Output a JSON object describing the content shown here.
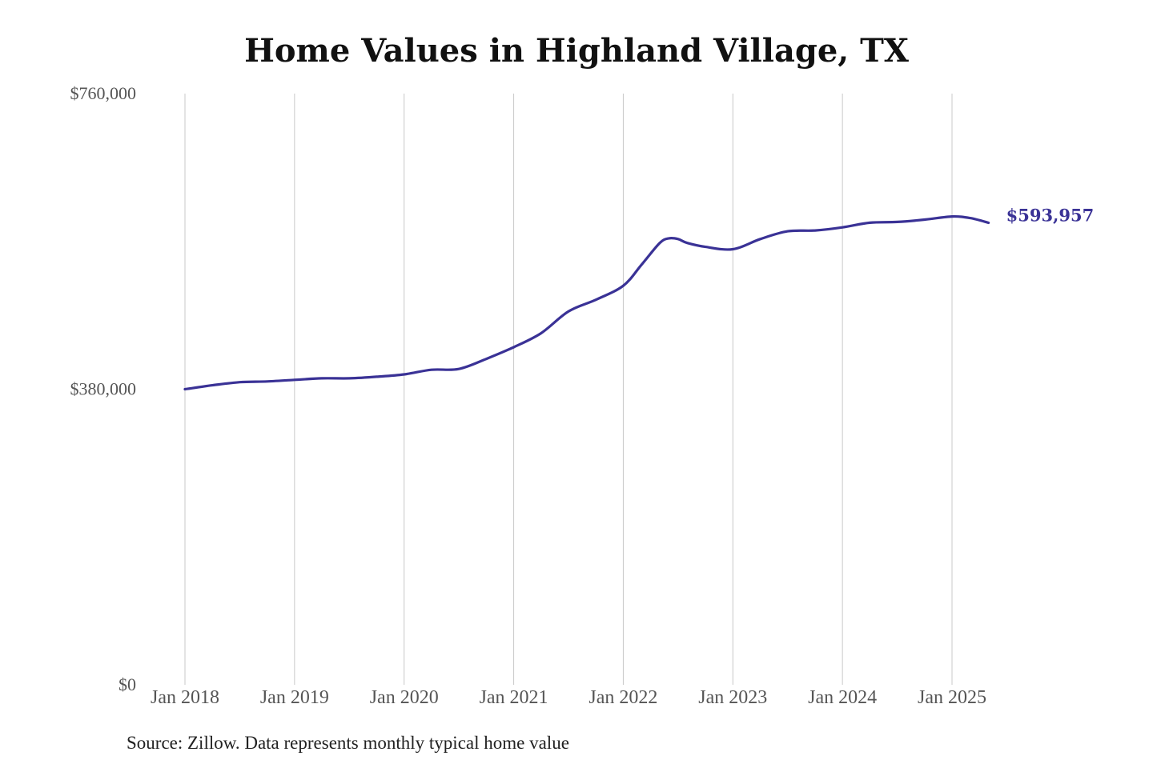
{
  "chart_data": {
    "type": "line",
    "title": "Home Values in Highland Village, TX",
    "source": "Source: Zillow. Data represents monthly typical home value",
    "ylim": [
      0,
      760000
    ],
    "ytick_values": [
      0,
      380000,
      760000
    ],
    "ytick_labels": [
      "$0",
      "$380,000",
      "$760,000"
    ],
    "xtick_labels": [
      "Jan 2018",
      "Jan 2019",
      "Jan 2020",
      "Jan 2021",
      "Jan 2022",
      "Jan 2023",
      "Jan 2024",
      "Jan 2025"
    ],
    "grid": "vertical",
    "series": [
      {
        "color": "#3a3296",
        "end_label": "$593,957",
        "x": [
          "2018-01",
          "2018-04",
          "2018-07",
          "2018-10",
          "2019-01",
          "2019-04",
          "2019-07",
          "2019-10",
          "2020-01",
          "2020-04",
          "2020-07",
          "2020-10",
          "2021-01",
          "2021-04",
          "2021-07",
          "2021-10",
          "2022-01",
          "2022-03",
          "2022-05",
          "2022-06",
          "2022-07",
          "2022-08",
          "2022-10",
          "2023-01",
          "2023-04",
          "2023-07",
          "2023-10",
          "2024-01",
          "2024-04",
          "2024-07",
          "2024-10",
          "2025-01",
          "2025-03",
          "2025-05"
        ],
        "values": [
          380000,
          385000,
          389000,
          390000,
          392000,
          394000,
          394000,
          396000,
          399000,
          405000,
          406000,
          419000,
          434000,
          452000,
          480000,
          495000,
          513000,
          540000,
          568000,
          574000,
          573000,
          568000,
          563000,
          560000,
          573000,
          583000,
          584000,
          588000,
          594000,
          595000,
          598000,
          602000,
          600000,
          593957
        ]
      }
    ]
  }
}
